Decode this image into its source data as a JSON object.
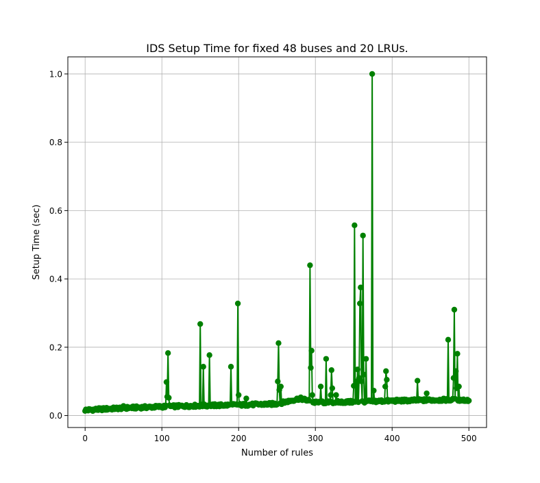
{
  "chart_data": {
    "type": "line",
    "title": "IDS Setup Time for fixed 48 buses and 20 LRUs.",
    "xlabel": "Number of rules",
    "ylabel": "Setup Time (sec)",
    "xlim": [
      -22.5,
      523
    ],
    "ylim": [
      -0.035,
      1.05
    ],
    "xticks": [
      0,
      100,
      200,
      300,
      400,
      500
    ],
    "yticks": [
      0.0,
      0.2,
      0.4,
      0.6,
      0.8,
      1.0
    ],
    "xtick_labels": [
      "0",
      "100",
      "200",
      "300",
      "400",
      "500"
    ],
    "ytick_labels": [
      "0.0",
      "0.2",
      "0.4",
      "0.6",
      "0.8",
      "1.0"
    ],
    "grid": true,
    "series_color": "#008000",
    "x_start": 0,
    "x_step": 1,
    "baseline": {
      "knots_x": [
        0,
        50,
        100,
        150,
        200,
        250,
        280,
        300,
        350,
        380,
        420,
        470,
        500
      ],
      "knots_y": [
        0.016,
        0.022,
        0.026,
        0.029,
        0.031,
        0.034,
        0.05,
        0.038,
        0.04,
        0.042,
        0.044,
        0.046,
        0.045
      ],
      "noise": 0.004
    },
    "spikes": [
      {
        "x": 50,
        "y": 0.028
      },
      {
        "x": 106,
        "y": 0.098
      },
      {
        "x": 107,
        "y": 0.055
      },
      {
        "x": 108,
        "y": 0.183
      },
      {
        "x": 109,
        "y": 0.052
      },
      {
        "x": 150,
        "y": 0.268
      },
      {
        "x": 154,
        "y": 0.143
      },
      {
        "x": 162,
        "y": 0.177
      },
      {
        "x": 190,
        "y": 0.143
      },
      {
        "x": 199,
        "y": 0.328
      },
      {
        "x": 200,
        "y": 0.06
      },
      {
        "x": 210,
        "y": 0.05
      },
      {
        "x": 251,
        "y": 0.1
      },
      {
        "x": 252,
        "y": 0.212
      },
      {
        "x": 253,
        "y": 0.075
      },
      {
        "x": 255,
        "y": 0.085
      },
      {
        "x": 293,
        "y": 0.44
      },
      {
        "x": 294,
        "y": 0.14
      },
      {
        "x": 295,
        "y": 0.19
      },
      {
        "x": 296,
        "y": 0.06
      },
      {
        "x": 307,
        "y": 0.085
      },
      {
        "x": 314,
        "y": 0.166
      },
      {
        "x": 320,
        "y": 0.06
      },
      {
        "x": 321,
        "y": 0.133
      },
      {
        "x": 322,
        "y": 0.08
      },
      {
        "x": 327,
        "y": 0.06
      },
      {
        "x": 350,
        "y": 0.087
      },
      {
        "x": 351,
        "y": 0.557
      },
      {
        "x": 353,
        "y": 0.1
      },
      {
        "x": 355,
        "y": 0.135
      },
      {
        "x": 357,
        "y": 0.11
      },
      {
        "x": 358,
        "y": 0.328
      },
      {
        "x": 359,
        "y": 0.375
      },
      {
        "x": 360,
        "y": 0.1
      },
      {
        "x": 362,
        "y": 0.527
      },
      {
        "x": 363,
        "y": 0.12
      },
      {
        "x": 366,
        "y": 0.166
      },
      {
        "x": 374,
        "y": 1.0
      },
      {
        "x": 376,
        "y": 0.073
      },
      {
        "x": 391,
        "y": 0.085
      },
      {
        "x": 392,
        "y": 0.13
      },
      {
        "x": 393,
        "y": 0.105
      },
      {
        "x": 433,
        "y": 0.102
      },
      {
        "x": 445,
        "y": 0.065
      },
      {
        "x": 473,
        "y": 0.222
      },
      {
        "x": 480,
        "y": 0.11
      },
      {
        "x": 481,
        "y": 0.31
      },
      {
        "x": 483,
        "y": 0.13
      },
      {
        "x": 484,
        "y": 0.08
      },
      {
        "x": 485,
        "y": 0.181
      },
      {
        "x": 487,
        "y": 0.085
      }
    ]
  }
}
